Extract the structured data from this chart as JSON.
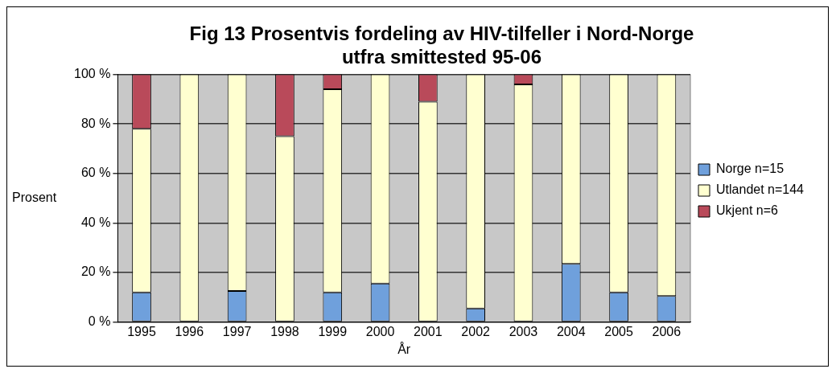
{
  "chart_data": {
    "type": "bar",
    "title": [
      "Fig 13 Prosentvis fordeling av HIV-tilfeller i Nord-Norge",
      "utfra smittested 95-06"
    ],
    "xlabel": "År",
    "ylabel": "Prosent",
    "categories": [
      "1995",
      "1996",
      "1997",
      "1998",
      "1999",
      "2000",
      "2001",
      "2002",
      "2003",
      "2004",
      "2005",
      "2006"
    ],
    "stacked": true,
    "legend": "right",
    "grid": "y",
    "ylim": [
      0,
      100
    ],
    "yticks": [
      {
        "value": 0,
        "label": "0 %"
      },
      {
        "value": 20,
        "label": "20 %"
      },
      {
        "value": 40,
        "label": "40 %"
      },
      {
        "value": 60,
        "label": "60 %"
      },
      {
        "value": 80,
        "label": "80 %"
      },
      {
        "value": 100,
        "label": "100 %"
      }
    ],
    "series": [
      {
        "name": "Norge n=15",
        "color": "#6fa0dc",
        "values": [
          12,
          0,
          12.5,
          0,
          12,
          15.5,
          0,
          5.5,
          0,
          23.5,
          12,
          10.5
        ]
      },
      {
        "name": "Utlandet n=144",
        "color": "#ffffd0",
        "values": [
          66,
          100,
          87.5,
          75,
          82,
          84.5,
          89,
          94.5,
          96,
          76.5,
          88,
          89.5
        ]
      },
      {
        "name": "Ukjent n=6",
        "color": "#b94a5a",
        "values": [
          22,
          0,
          0,
          25,
          6,
          0,
          11,
          0,
          4,
          0,
          0,
          0
        ]
      }
    ]
  }
}
